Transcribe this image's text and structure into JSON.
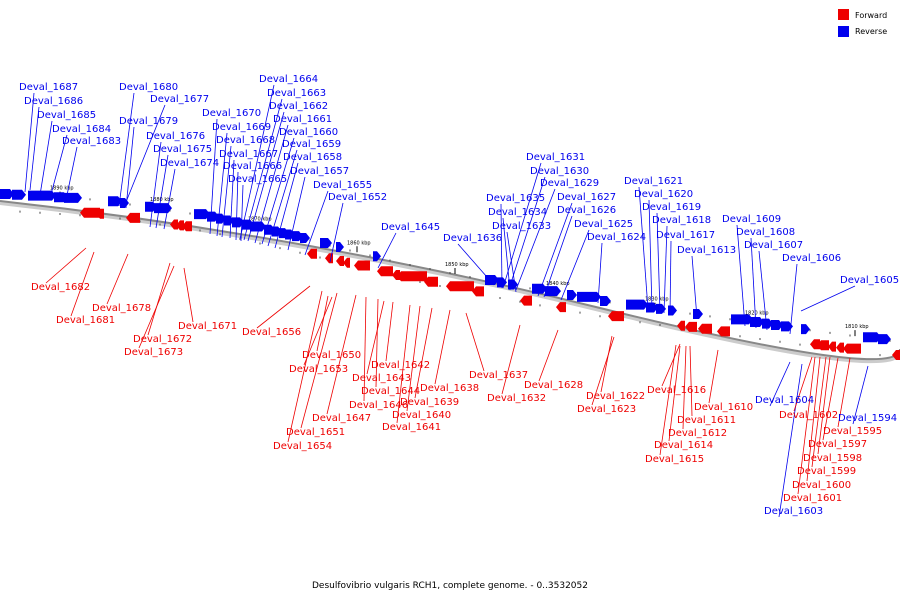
{
  "caption": "Desulfovibrio vulgaris RCH1, complete genome. - 0..3532052",
  "legend": [
    {
      "label": "Forward",
      "color": "#ee0000"
    },
    {
      "label": "Reverse",
      "color": "#0000ee"
    }
  ],
  "colors": {
    "forward": "#ee0000",
    "reverse": "#0000ee",
    "axis": "#888888"
  },
  "ticks": [
    "1890 kbp",
    "1880 kbp",
    "1870 kbp",
    "1860 kbp",
    "1850 kbp",
    "1840 kbp",
    "1830 kbp",
    "1820 kbp",
    "1810 kbp"
  ],
  "reverse_labels": [
    "Deval_1687",
    "Deval_1686",
    "Deval_1685",
    "Deval_1684",
    "Deval_1683",
    "Deval_1680",
    "Deval_1677",
    "Deval_1679",
    "Deval_1676",
    "Deval_1675",
    "Deval_1674",
    "Deval_1664",
    "Deval_1663",
    "Deval_1662",
    "Deval_1670",
    "Deval_1661",
    "Deval_1669",
    "Deval_1660",
    "Deval_1668",
    "Deval_1659",
    "Deval_1667",
    "Deval_1658",
    "Deval_1666",
    "Deval_1657",
    "Deval_1665",
    "Deval_1655",
    "Deval_1652",
    "Deval_1645",
    "Deval_1636",
    "Deval_1631",
    "Deval_1630",
    "Deval_1629",
    "Deval_1635",
    "Deval_1627",
    "Deval_1634",
    "Deval_1626",
    "Deval_1633",
    "Deval_1625",
    "Deval_1624",
    "Deval_1621",
    "Deval_1620",
    "Deval_1619",
    "Deval_1618",
    "Deval_1617",
    "Deval_1613",
    "Deval_1609",
    "Deval_1608",
    "Deval_1607",
    "Deval_1606",
    "Deval_1605",
    "Deval_1604",
    "Deval_1594",
    "Deval_1603"
  ],
  "forward_labels": [
    "Deval_1682",
    "Deval_1681",
    "Deval_1678",
    "Deval_1672",
    "Deval_1673",
    "Deval_1671",
    "Deval_1656",
    "Deval_1650",
    "Deval_1653",
    "Deval_1642",
    "Deval_1643",
    "Deval_1644",
    "Deval_1646",
    "Deval_1647",
    "Deval_1651",
    "Deval_1654",
    "Deval_1637",
    "Deval_1638",
    "Deval_1639",
    "Deval_1640",
    "Deval_1641",
    "Deval_1632",
    "Deval_1628",
    "Deval_1622",
    "Deval_1623",
    "Deval_1616",
    "Deval_1611",
    "Deval_1610",
    "Deval_1612",
    "Deval_1614",
    "Deval_1615",
    "Deval_1602",
    "Deval_1595",
    "Deval_1597",
    "Deval_1598",
    "Deval_1599",
    "Deval_1600",
    "Deval_1601"
  ]
}
